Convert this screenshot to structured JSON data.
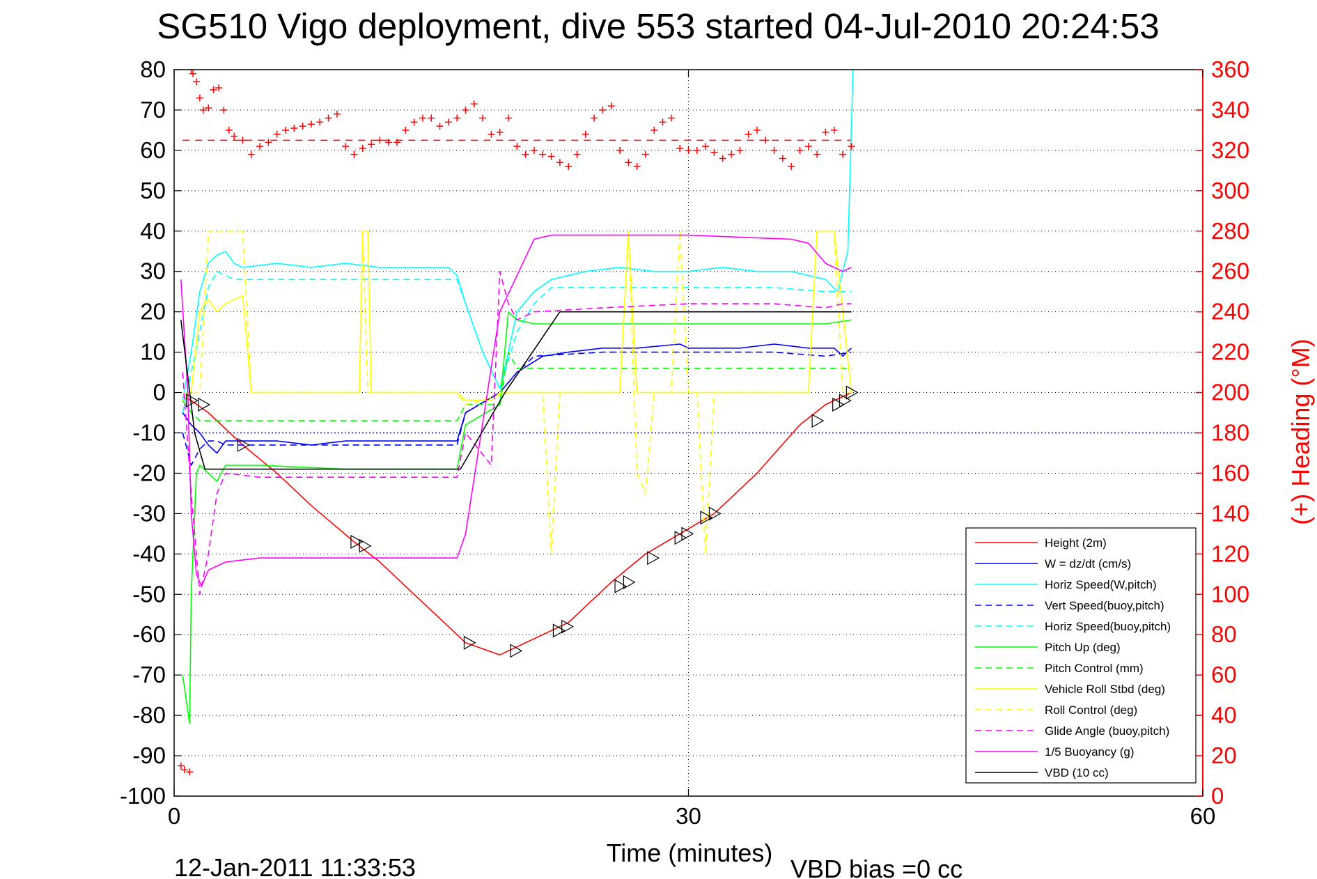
{
  "chart_data": {
    "type": "line",
    "title": "SG510 Vigo deployment, dive 553 started 04-Jul-2010 20:24:53",
    "xlabel": "Time (minutes)",
    "ylabel_right": "(+) Heading (°M)",
    "xlim": [
      0,
      60
    ],
    "ylim": [
      -100,
      80
    ],
    "ylim_right": [
      0,
      360
    ],
    "xticks": [
      "0",
      "30",
      "60"
    ],
    "yticks": [
      "80",
      "70",
      "60",
      "50",
      "40",
      "30",
      "20",
      "10",
      "0",
      "-10",
      "-20",
      "-30",
      "-40",
      "-50",
      "-60",
      "-70",
      "-80",
      "-90",
      "-100"
    ],
    "yticks_right": [
      "360",
      "340",
      "320",
      "300",
      "280",
      "260",
      "240",
      "220",
      "200",
      "180",
      "160",
      "140",
      "120",
      "100",
      "80",
      "60",
      "40",
      "20",
      "0"
    ],
    "grid": "dotted",
    "legend_position": "bottom-right",
    "footer_left": "12-Jan-2011 11:33:53",
    "footer_right": "VBD bias =0 cc",
    "colors": {
      "red": "#ff0000",
      "blue": "#0000ff",
      "cyan": "#00ffff",
      "green": "#00ff00",
      "yellow": "#ffff00",
      "magenta": "#ff00ff",
      "black": "#000000"
    },
    "series": [
      {
        "name": "Height (2m)",
        "color": "#ff0000",
        "dash": false,
        "x": [
          0.5,
          1.0,
          2.0,
          4.0,
          6.0,
          8.0,
          10.5,
          12.0,
          14.0,
          16.0,
          17.0,
          19.0,
          21.5,
          23.0,
          25.5,
          27.5,
          29.5,
          31.5,
          34.0,
          36.5,
          38.0,
          39.5
        ],
        "y": [
          -1,
          -2,
          -5,
          -13,
          -20,
          -28,
          -37,
          -42,
          -50,
          -58,
          -62,
          -65,
          -60,
          -57,
          -47,
          -40,
          -35,
          -30,
          -20,
          -8,
          -3,
          0
        ]
      },
      {
        "name": "W = dz/dt (cm/s)",
        "color": "#0000ff",
        "dash": false,
        "x": [
          0.5,
          1.0,
          1.5,
          2.0,
          2.5,
          3.0,
          4.0,
          6.0,
          8.0,
          10.0,
          12.0,
          14.0,
          16.5,
          17.0,
          19.0,
          20.0,
          21.5,
          23.0,
          25.0,
          27.0,
          29.5,
          30.0,
          33.0,
          35.0,
          37.0,
          38.5,
          39.0,
          39.5
        ],
        "y": [
          -5,
          -8,
          -10,
          -13,
          -15,
          -12,
          -12,
          -12,
          -13,
          -12,
          -12,
          -12,
          -12,
          -5,
          0,
          5,
          9,
          10,
          11,
          11,
          12,
          11,
          11,
          12,
          11,
          11,
          9,
          11
        ]
      },
      {
        "name": "Horiz Speed(W,pitch)",
        "color": "#00ffff",
        "dash": false,
        "x": [
          0.5,
          1.0,
          1.5,
          2.0,
          2.5,
          3.0,
          3.5,
          4.0,
          6.0,
          8.0,
          10.0,
          12.0,
          14.0,
          16.0,
          16.5,
          17.0,
          18.0,
          19.0,
          19.5,
          20.0,
          21.0,
          22.0,
          24.0,
          26.0,
          28.0,
          30.0,
          32.0,
          34.0,
          36.0,
          38.0,
          38.7,
          39.3,
          39.6
        ],
        "y": [
          -2,
          10,
          25,
          32,
          34,
          35,
          32,
          31,
          32,
          31,
          32,
          31,
          31,
          31,
          29,
          22,
          10,
          1,
          10,
          20,
          25,
          28,
          30,
          31,
          30,
          30,
          31,
          30,
          30,
          28,
          25,
          35,
          80
        ]
      },
      {
        "name": "Vert Speed(buoy,pitch)",
        "color": "#0000ff",
        "dash": true,
        "x": [
          0.5,
          1.0,
          1.5,
          2.0,
          2.5,
          3.0,
          5.0,
          10.0,
          16.5,
          17.0,
          19.0,
          20.0,
          21.0,
          25.0,
          30.0,
          35.0,
          38.0,
          39.5
        ],
        "y": [
          -10,
          -18,
          -14,
          -12,
          -12,
          -13,
          -13,
          -13,
          -13,
          -5,
          0,
          5,
          9,
          10,
          10,
          10,
          9,
          10
        ]
      },
      {
        "name": "Horiz Speed(buoy,pitch)",
        "color": "#00ffff",
        "dash": true,
        "x": [
          0.5,
          1.0,
          1.5,
          2.0,
          2.5,
          3.0,
          3.5,
          5.0,
          10.0,
          16.5,
          17.0,
          18.0,
          19.0,
          19.5,
          20.0,
          21.0,
          22.0,
          25.0,
          30.0,
          35.0,
          38.0,
          39.5
        ],
        "y": [
          -5,
          5,
          15,
          26,
          30,
          29,
          28,
          28,
          28,
          28,
          22,
          10,
          1,
          8,
          15,
          22,
          26,
          26,
          26,
          26,
          25,
          25
        ]
      },
      {
        "name": "Pitch Up (deg)",
        "color": "#00ff00",
        "dash": false,
        "x": [
          0.5,
          0.9,
          1.0,
          1.3,
          1.5,
          2.0,
          2.5,
          3.0,
          5.0,
          10.0,
          16.5,
          17.0,
          19.0,
          19.5,
          20.0,
          21.0,
          25.0,
          30.0,
          35.0,
          38.0,
          39.5
        ],
        "y": [
          -70,
          -82,
          -50,
          -20,
          -18,
          -20,
          -22,
          -18,
          -18,
          -19,
          -19,
          -8,
          -3,
          20,
          18,
          17,
          17,
          17,
          17,
          17,
          18
        ]
      },
      {
        "name": "Pitch Control (mm)",
        "color": "#00ff00",
        "dash": true,
        "x": [
          0.5,
          1.0,
          1.5,
          2.0,
          5.0,
          10.0,
          16.5,
          17.0,
          19.0,
          19.5,
          20.0,
          25.0,
          30.0,
          35.0,
          39.5
        ],
        "y": [
          -2,
          -5,
          -7,
          -7,
          -7,
          -7,
          -7,
          -3,
          -3,
          10,
          6,
          6,
          6,
          6,
          6
        ]
      },
      {
        "name": "Vehicle Roll Stbd (deg)",
        "color": "#ffff00",
        "dash": false,
        "x": [
          0.5,
          1.0,
          1.5,
          1.8,
          2.0,
          2.5,
          3.0,
          3.5,
          4.0,
          4.5,
          5.0,
          10.0,
          10.8,
          11.0,
          11.3,
          11.5,
          12.0,
          16.5,
          17.0,
          18.5,
          19.0,
          25.0,
          26.0,
          26.5,
          27.0,
          28.0,
          33.0,
          37.0,
          37.5,
          38.5,
          39.0,
          39.5
        ],
        "y": [
          -2,
          0,
          20,
          22,
          23,
          20,
          22,
          23,
          24,
          0,
          0,
          0,
          0,
          40,
          40,
          0,
          0,
          0,
          -2,
          -2,
          0,
          0,
          0,
          40,
          0,
          0,
          0,
          0,
          40,
          40,
          20,
          0
        ]
      },
      {
        "name": "Roll Control (deg)",
        "color": "#ffff00",
        "dash": true,
        "x": [
          0.5,
          1.5,
          2.0,
          4.0,
          4.5,
          10.5,
          10.8,
          11.0,
          11.3,
          11.5,
          16.5,
          17.0,
          19.5,
          21.5,
          22.0,
          22.5,
          23.0,
          25.0,
          26.0,
          26.5,
          27.0,
          27.5,
          28.0,
          29.0,
          29.5,
          30.0,
          30.5,
          31.0,
          31.5,
          37.0,
          37.5,
          38.5,
          39.0,
          39.5
        ],
        "y": [
          0,
          0,
          40,
          40,
          0,
          0,
          0,
          40,
          0,
          0,
          0,
          -3,
          0,
          0,
          -40,
          0,
          0,
          0,
          0,
          40,
          -20,
          -25,
          0,
          0,
          40,
          0,
          0,
          -40,
          0,
          0,
          40,
          40,
          0,
          0
        ]
      },
      {
        "name": "Glide Angle (buoy,pitch)",
        "color": "#ff00ff",
        "dash": true,
        "x": [
          0.5,
          1.0,
          1.5,
          2.0,
          2.5,
          3.0,
          5.0,
          10.0,
          16.5,
          17.0,
          18.5,
          19.0,
          19.5,
          20.0,
          21.0,
          25.0,
          30.0,
          35.0,
          38.0,
          39.0,
          39.5
        ],
        "y": [
          5,
          -25,
          -50,
          -40,
          -25,
          -20,
          -21,
          -21,
          -21,
          -10,
          -18,
          30,
          22,
          18,
          20,
          21,
          22,
          22,
          21,
          22,
          22
        ]
      },
      {
        "name": "1/5 Buoyancy (g)",
        "color": "#ff00ff",
        "dash": false,
        "x": [
          0.4,
          0.8,
          1.0,
          1.3,
          1.6,
          2.0,
          3.0,
          5.0,
          10.0,
          16.5,
          17.0,
          19.0,
          21.0,
          22.0,
          30.0,
          36.0,
          37.0,
          38.0,
          39.0,
          39.5
        ],
        "y": [
          28,
          0,
          -30,
          -45,
          -48,
          -44,
          -42,
          -41,
          -41,
          -41,
          -35,
          20,
          38,
          39,
          39,
          38,
          37,
          32,
          30,
          31
        ]
      },
      {
        "name": "VBD (10 cc)",
        "color": "#000000",
        "dash": false,
        "x": [
          0.4,
          1.2,
          1.8,
          10.0,
          16.7,
          19.3,
          22.5,
          39.5
        ],
        "y": [
          18,
          -10,
          -19,
          -19,
          -19,
          0,
          20,
          20
        ]
      }
    ],
    "heading_series": {
      "color": "#ff0000",
      "marker": "+",
      "mean": 325,
      "x": [
        0.4,
        0.6,
        0.9,
        1.0,
        1.1,
        1.3,
        1.5,
        1.7,
        2.0,
        2.3,
        2.6,
        2.9,
        3.2,
        3.5,
        4.0,
        4.5,
        5.0,
        5.5,
        6.0,
        6.5,
        7.0,
        7.5,
        8.0,
        8.5,
        9.0,
        9.5,
        10.0,
        10.5,
        11.0,
        11.5,
        12.0,
        12.5,
        13.0,
        13.5,
        14.0,
        14.5,
        15.0,
        15.5,
        16.0,
        16.5,
        17.0,
        17.5,
        18.0,
        18.5,
        19.0,
        19.5,
        20.0,
        20.5,
        21.0,
        21.5,
        22.0,
        22.5,
        23.0,
        23.5,
        24.0,
        24.5,
        25.0,
        25.5,
        26.0,
        26.5,
        27.0,
        27.5,
        28.0,
        28.5,
        29.0,
        29.5,
        30.0,
        30.5,
        31.0,
        31.5,
        32.0,
        32.5,
        33.0,
        33.5,
        34.0,
        34.5,
        35.0,
        35.5,
        36.0,
        36.5,
        37.0,
        37.5,
        38.0,
        38.5,
        39.0,
        39.5
      ],
      "y": [
        15,
        13,
        12,
        360,
        358,
        354,
        346,
        340,
        341,
        350,
        351,
        340,
        330,
        327,
        325,
        318,
        322,
        324,
        328,
        330,
        331,
        332,
        333,
        334,
        336,
        338,
        322,
        318,
        321,
        323,
        325,
        324,
        324,
        330,
        334,
        336,
        336,
        332,
        334,
        336,
        340,
        343,
        336,
        328,
        329,
        336,
        322,
        318,
        320,
        318,
        317,
        314,
        312,
        318,
        328,
        336,
        340,
        342,
        320,
        314,
        312,
        318,
        330,
        334,
        336,
        321,
        320,
        320,
        322,
        319,
        316,
        318,
        320,
        328,
        330,
        325,
        320,
        316,
        312,
        320,
        322,
        318,
        329,
        330,
        318,
        322
      ]
    },
    "markers": {
      "marker": "triangle-right",
      "color": "#000000",
      "x": [
        1.0,
        1.7,
        4.0,
        10.6,
        11.1,
        17.2,
        19.9,
        22.4,
        22.9,
        26.0,
        26.5,
        27.9,
        29.5,
        29.9,
        31.0,
        31.5,
        37.5,
        38.7,
        39.1,
        39.5
      ],
      "y": [
        -2,
        -3,
        -13,
        -37,
        -38,
        -62,
        -64,
        -59,
        -58,
        -48,
        -47,
        -41,
        -36,
        -35,
        -31,
        -30,
        -7,
        -3,
        -2,
        0
      ]
    }
  }
}
